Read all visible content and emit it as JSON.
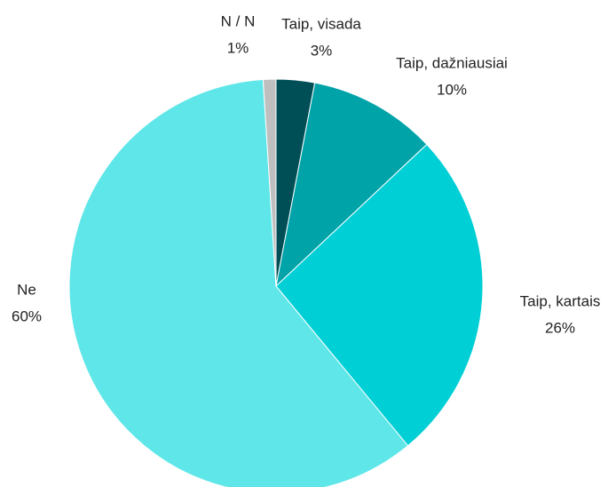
{
  "chart_data": {
    "type": "pie",
    "categories": [
      "Taip, visada",
      "Taip, dažniausiai",
      "Taip, kartais",
      "Ne",
      "N / N"
    ],
    "values": [
      3,
      10,
      26,
      60,
      1
    ],
    "value_labels": [
      "3%",
      "10%",
      "26%",
      "60%",
      "1%"
    ],
    "colors": [
      "#004f57",
      "#00a3a8",
      "#00cfd6",
      "#5ee6e8",
      "#bfbfbf"
    ]
  }
}
